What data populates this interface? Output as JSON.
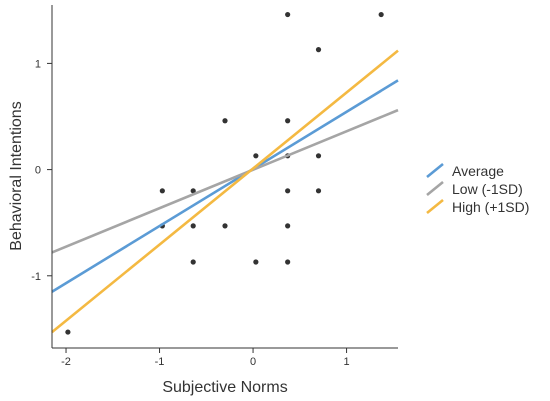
{
  "chart_data": {
    "type": "scatter",
    "title": "",
    "xlabel": "Subjective Norms",
    "ylabel": "Behavioral Intentions",
    "xlim": [
      -2.15,
      1.55
    ],
    "ylim": [
      -1.68,
      1.55
    ],
    "x_ticks": [
      -2,
      -1,
      0,
      1
    ],
    "x_tick_labels": [
      "-2",
      "-1",
      "0",
      "1"
    ],
    "y_ticks": [
      -1,
      0,
      1
    ],
    "y_tick_labels": [
      "-1",
      "0",
      "1"
    ],
    "grid": false,
    "legend_position": "right",
    "points": [
      {
        "x": -1.98,
        "y": -1.53
      },
      {
        "x": -0.97,
        "y": -0.2
      },
      {
        "x": -0.97,
        "y": -0.53
      },
      {
        "x": -0.64,
        "y": -0.2
      },
      {
        "x": -0.64,
        "y": -0.53
      },
      {
        "x": -0.64,
        "y": -0.87
      },
      {
        "x": -0.3,
        "y": 0.46
      },
      {
        "x": -0.3,
        "y": -0.53
      },
      {
        "x": 0.03,
        "y": 0.13
      },
      {
        "x": 0.03,
        "y": -0.87
      },
      {
        "x": 0.37,
        "y": 1.46
      },
      {
        "x": 0.37,
        "y": 0.46
      },
      {
        "x": 0.37,
        "y": 0.13
      },
      {
        "x": 0.37,
        "y": -0.2
      },
      {
        "x": 0.37,
        "y": -0.53
      },
      {
        "x": 0.37,
        "y": -0.87
      },
      {
        "x": 0.7,
        "y": 1.13
      },
      {
        "x": 0.7,
        "y": 0.13
      },
      {
        "x": 0.7,
        "y": -0.2
      },
      {
        "x": 1.37,
        "y": 1.46
      }
    ],
    "point_color": "#333333",
    "series": [
      {
        "name": "Average",
        "color": "#5B9BD5",
        "x": [
          -2.15,
          1.55
        ],
        "y": [
          -1.15,
          0.84
        ]
      },
      {
        "name": "Low (-1SD)",
        "color": "#A5A5A5",
        "x": [
          -2.15,
          1.55
        ],
        "y": [
          -0.78,
          0.56
        ]
      },
      {
        "name": "High (+1SD)",
        "color": "#F4B942",
        "x": [
          -2.15,
          1.55
        ],
        "y": [
          -1.53,
          1.12
        ]
      }
    ]
  }
}
